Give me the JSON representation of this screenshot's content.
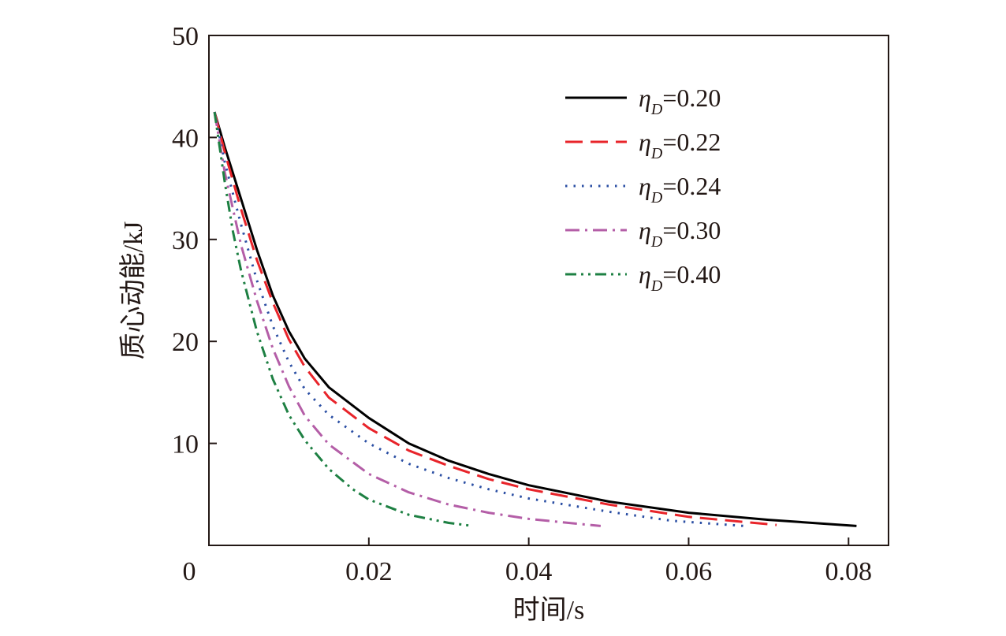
{
  "chart_data": {
    "type": "line",
    "title": "",
    "xlabel": "时间/s",
    "ylabel": "质心动能/kJ",
    "xlim": [
      0,
      0.085
    ],
    "ylim": [
      0,
      50
    ],
    "x_ticks": [
      {
        "value": 0,
        "label": "0"
      },
      {
        "value": 0.02,
        "label": "0.02"
      },
      {
        "value": 0.04,
        "label": "0.04"
      },
      {
        "value": 0.06,
        "label": "0.06"
      },
      {
        "value": 0.08,
        "label": "0.08"
      }
    ],
    "y_ticks": [
      {
        "value": 10,
        "label": "10"
      },
      {
        "value": 20,
        "label": "20"
      },
      {
        "value": 30,
        "label": "30"
      },
      {
        "value": 40,
        "label": "40"
      },
      {
        "value": 50,
        "label": "50"
      }
    ],
    "grid": false,
    "legend_position": "top-right",
    "series": [
      {
        "name": "ηD=0.20",
        "legend_symbol": "η",
        "legend_subscript": "D",
        "legend_value": "=0.20",
        "color": "#000000",
        "dash": "solid",
        "x": [
          0.0007,
          0.002,
          0.004,
          0.006,
          0.008,
          0.01,
          0.012,
          0.015,
          0.02,
          0.025,
          0.03,
          0.035,
          0.04,
          0.05,
          0.06,
          0.07,
          0.081
        ],
        "values": [
          42.5,
          39.0,
          34.0,
          29.0,
          24.5,
          21.0,
          18.3,
          15.5,
          12.5,
          10.0,
          8.3,
          7.0,
          5.9,
          4.3,
          3.2,
          2.5,
          1.9
        ]
      },
      {
        "name": "ηD=0.22",
        "legend_symbol": "η",
        "legend_subscript": "D",
        "legend_value": "=0.22",
        "color": "#e8242a",
        "dash": "long-dash",
        "x": [
          0.0007,
          0.002,
          0.004,
          0.006,
          0.008,
          0.01,
          0.012,
          0.015,
          0.02,
          0.025,
          0.03,
          0.035,
          0.04,
          0.05,
          0.06,
          0.071
        ],
        "values": [
          42.5,
          38.5,
          33.0,
          28.0,
          23.8,
          20.2,
          17.5,
          14.5,
          11.5,
          9.3,
          7.8,
          6.5,
          5.5,
          4.0,
          2.8,
          2.0
        ]
      },
      {
        "name": "ηD=0.24",
        "legend_symbol": "η",
        "legend_subscript": "D",
        "legend_value": "=0.24",
        "color": "#2a4ea3",
        "dash": "dotted",
        "x": [
          0.0007,
          0.002,
          0.004,
          0.006,
          0.008,
          0.01,
          0.012,
          0.015,
          0.02,
          0.025,
          0.03,
          0.035,
          0.04,
          0.05,
          0.058,
          0.067
        ],
        "values": [
          42.5,
          37.5,
          31.5,
          26.0,
          21.5,
          18.0,
          15.3,
          12.8,
          10.0,
          8.0,
          6.6,
          5.5,
          4.6,
          3.3,
          2.4,
          1.9
        ]
      },
      {
        "name": "ηD=0.30",
        "legend_symbol": "η",
        "legend_subscript": "D",
        "legend_value": "=0.30",
        "color": "#b45ea7",
        "dash": "dash-dot",
        "x": [
          0.0007,
          0.002,
          0.004,
          0.006,
          0.008,
          0.01,
          0.012,
          0.015,
          0.02,
          0.025,
          0.03,
          0.035,
          0.04,
          0.045,
          0.049
        ],
        "values": [
          42.5,
          36.5,
          29.5,
          24.0,
          19.3,
          15.6,
          12.7,
          9.9,
          7.0,
          5.2,
          4.0,
          3.2,
          2.6,
          2.2,
          1.9
        ]
      },
      {
        "name": "ηD=0.40",
        "legend_symbol": "η",
        "legend_subscript": "D",
        "legend_value": "=0.40",
        "color": "#1e8043",
        "dash": "dash-dot-dot",
        "x": [
          0.0007,
          0.002,
          0.003,
          0.004,
          0.006,
          0.008,
          0.01,
          0.012,
          0.015,
          0.018,
          0.02,
          0.025,
          0.03,
          0.033
        ],
        "values": [
          42.5,
          35.5,
          30.8,
          27.0,
          21.0,
          16.3,
          12.8,
          10.3,
          7.5,
          5.5,
          4.5,
          3.0,
          2.2,
          1.9
        ]
      }
    ]
  }
}
